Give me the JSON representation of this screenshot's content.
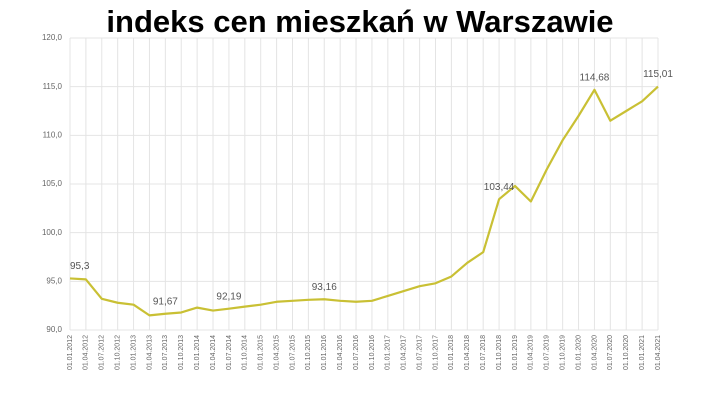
{
  "chart_data": {
    "type": "line",
    "title": "indeks cen mieszkań w Warszawie",
    "categories": [
      "01.01.2012",
      "01.04.2012",
      "01.07.2012",
      "01.10.2012",
      "01.01.2013",
      "01.04.2013",
      "01.07.2013",
      "01.10.2013",
      "01.01.2014",
      "01.04.2014",
      "01.07.2014",
      "01.10.2014",
      "01.01.2015",
      "01.04.2015",
      "01.07.2015",
      "01.10.2015",
      "01.01.2016",
      "01.04.2016",
      "01.07.2016",
      "01.10.2016",
      "01.01.2017",
      "01.04.2017",
      "01.07.2017",
      "01.10.2017",
      "01.01.2018",
      "01.04.2018",
      "01.07.2018",
      "01.10.2018",
      "01.01.2019",
      "01.04.2019",
      "01.07.2019",
      "01.10.2019",
      "01.01.2020",
      "01.04.2020",
      "01.07.2020",
      "01.10.2020",
      "01.01.2021",
      "01.04.2021"
    ],
    "values": [
      95.3,
      95.2,
      93.2,
      92.8,
      92.6,
      91.5,
      91.67,
      91.8,
      92.3,
      92.0,
      92.19,
      92.4,
      92.6,
      92.9,
      93.0,
      93.1,
      93.16,
      93.0,
      92.9,
      93.0,
      93.5,
      94.0,
      94.5,
      94.8,
      95.5,
      96.9,
      98.0,
      103.44,
      104.8,
      103.2,
      106.5,
      109.5,
      112.0,
      114.68,
      111.5,
      112.5,
      113.5,
      115.01
    ],
    "value_labels": [
      "95,3",
      null,
      null,
      null,
      null,
      null,
      "91,67",
      null,
      null,
      null,
      "92,19",
      null,
      null,
      null,
      null,
      null,
      "93,16",
      null,
      null,
      null,
      null,
      null,
      null,
      null,
      null,
      null,
      null,
      "103,44",
      null,
      null,
      null,
      null,
      null,
      "114,68",
      null,
      null,
      null,
      "115,01"
    ],
    "color": "#c9c034",
    "ylim": [
      90,
      120
    ],
    "yticks": [
      {
        "value": 90,
        "label": "90,0"
      },
      {
        "value": 95,
        "label": "95,0"
      },
      {
        "value": 100,
        "label": "100,0"
      },
      {
        "value": 105,
        "label": "105,0"
      },
      {
        "value": 110,
        "label": "110,0"
      },
      {
        "value": 115,
        "label": "115,0"
      },
      {
        "value": 120,
        "label": "120,0"
      }
    ],
    "grid": true
  }
}
